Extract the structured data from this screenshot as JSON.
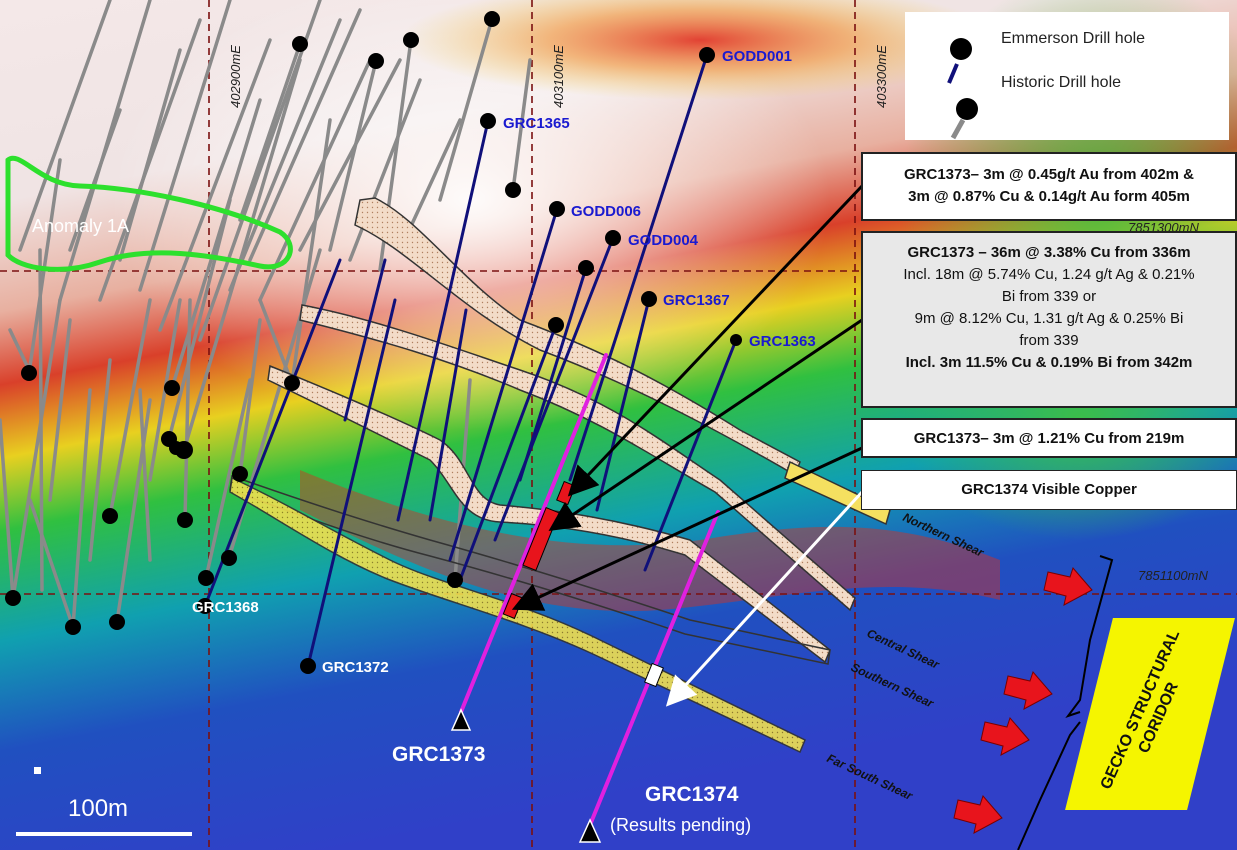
{
  "map": {
    "grid": {
      "eastings": [
        "402900mE",
        "403100mE",
        "403300mE"
      ],
      "northings": [
        "7851300mN",
        "7851100mN"
      ]
    },
    "anomaly_label": "Anomaly 1A",
    "legend": {
      "emmerson": "Emmerson Drill hole",
      "historic": "Historic Drill hole"
    },
    "colors": {
      "emmerson_trace": "#10107a",
      "historic_trace": "#8a8a8a",
      "planned_trace": "#e020e0",
      "intercept": "#e8141c",
      "anomaly_outline": "#2de02d",
      "label_blue": "#1a1ad0",
      "grid_line": "#7a1010",
      "arrow": "#e8141c",
      "corridor": "#f5f500"
    },
    "drill_holes": {
      "GODD001": "GODD001",
      "GRC1365": "GRC1365",
      "GODD006": "GODD006",
      "GODD004": "GODD004",
      "GRC1367": "GRC1367",
      "GRC1363": "GRC1363",
      "GRC1368": "GRC1368",
      "GRC1372": "GRC1372",
      "GRC1373": "GRC1373",
      "GRC1374": "GRC1374",
      "results_pending": "(Results pending)"
    },
    "callouts": {
      "c1": {
        "line1": "GRC1373– 3m @ 0.45g/t Au from 402m &",
        "line2": "3m @ 0.87% Cu & 0.14g/t Au form 405m"
      },
      "c2": {
        "line1": "GRC1373 – 36m @ 3.38% Cu from 336m",
        "line2": "Incl. 18m @ 5.74% Cu, 1.24 g/t Ag & 0.21%",
        "line3": "Bi from 339 or",
        "line4": "9m @ 8.12% Cu, 1.31 g/t Ag & 0.25% Bi",
        "line5": "from 339",
        "line6": "Incl. 3m 11.5% Cu & 0.19% Bi from 342m"
      },
      "c3": "GRC1373– 3m @ 1.21% Cu from 219m",
      "c4": "GRC1374 Visible Copper"
    },
    "shears": {
      "northern": "Northern Shear",
      "central": "Central Shear",
      "southern": "Southern Shear",
      "far_south": "Far South Shear"
    },
    "corridor": "GECKO STRUCTURAL CORIDOR",
    "scale": "100m"
  }
}
